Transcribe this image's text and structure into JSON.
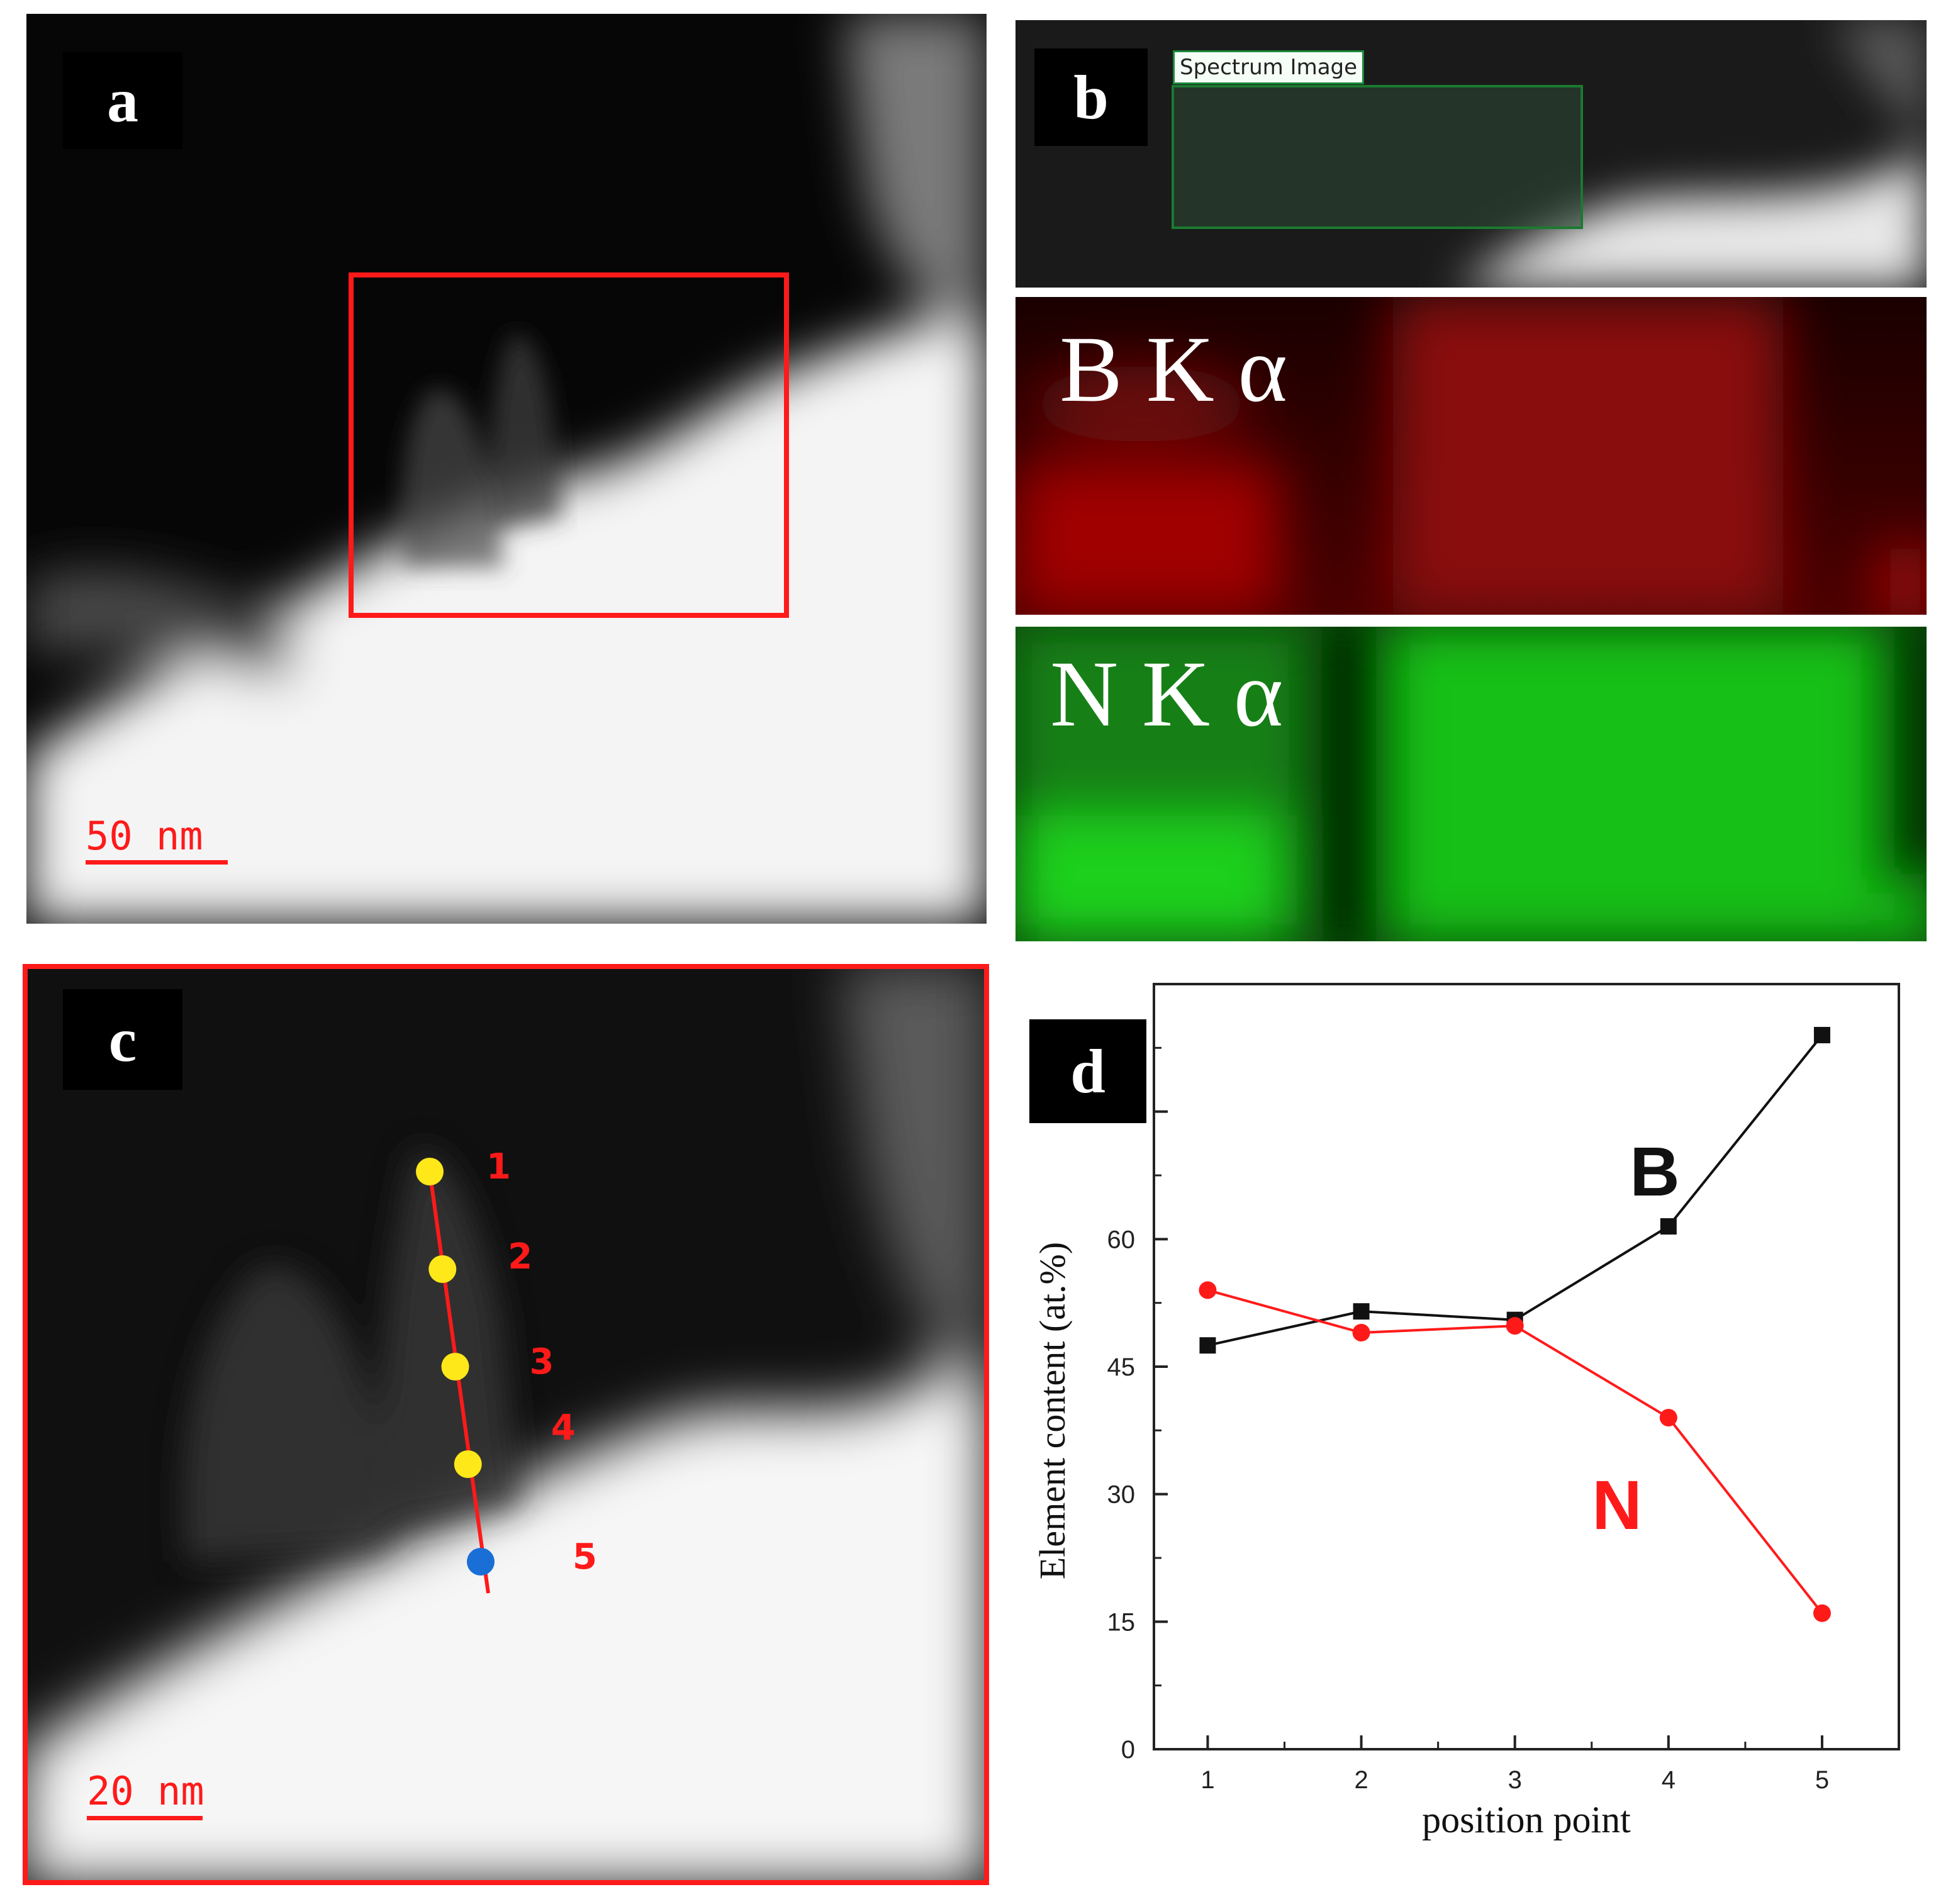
{
  "panels": {
    "a": {
      "label": "a",
      "scale_bar": "50 nm"
    },
    "b": {
      "label": "b",
      "spectrum_image": "Spectrum Image",
      "maps": [
        {
          "label": "B K α",
          "color": "#d01010"
        },
        {
          "label": "N K α",
          "color": "#10e010"
        }
      ]
    },
    "c": {
      "label": "c",
      "scale_bar": "20 nm",
      "points": [
        {
          "label": "1",
          "color": "#ffe81a"
        },
        {
          "label": "2",
          "color": "#ffe81a"
        },
        {
          "label": "3",
          "color": "#ffe81a"
        },
        {
          "label": "4",
          "color": "#ffe81a"
        },
        {
          "label": "5",
          "color": "#1a6fd6"
        }
      ]
    },
    "d": {
      "label": "d"
    }
  },
  "chart_data": {
    "type": "line",
    "xlabel": "position point",
    "ylabel": "Element content (at.%)",
    "x": [
      1,
      2,
      3,
      4,
      5
    ],
    "xlim": [
      0.65,
      5.5
    ],
    "ylim": [
      0,
      90
    ],
    "yticks": [
      0,
      15,
      30,
      45,
      60,
      75
    ],
    "xticks": [
      1,
      2,
      3,
      4,
      5
    ],
    "series": [
      {
        "name": "B",
        "values": [
          47.5,
          51.5,
          50.5,
          61.5,
          84
        ],
        "color": "#111111",
        "marker": "square"
      },
      {
        "name": "N",
        "values": [
          54,
          49,
          49.8,
          39,
          16
        ],
        "color": "#ff1a1a",
        "marker": "circle"
      }
    ]
  }
}
